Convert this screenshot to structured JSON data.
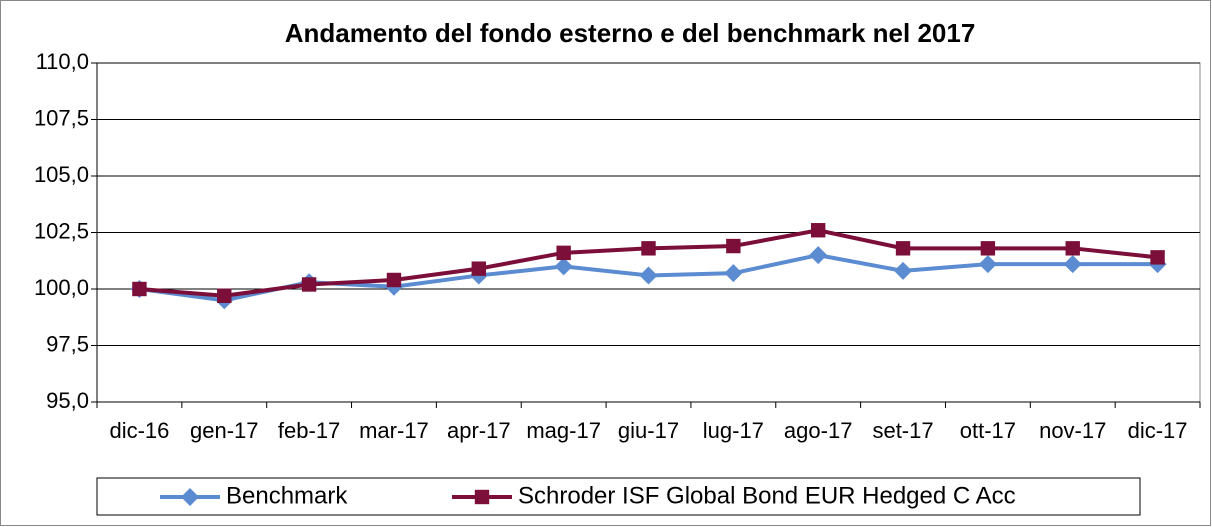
{
  "chart_data": {
    "type": "line",
    "title": "Andamento del fondo esterno e del benchmark nel 2017",
    "categories": [
      "dic-16",
      "gen-17",
      "feb-17",
      "mar-17",
      "apr-17",
      "mag-17",
      "giu-17",
      "lug-17",
      "ago-17",
      "set-17",
      "ott-17",
      "nov-17",
      "dic-17"
    ],
    "series": [
      {
        "name": "Benchmark",
        "color": "#5b8bd0",
        "marker": "diamond",
        "values": [
          100.0,
          99.5,
          100.3,
          100.1,
          100.6,
          101.0,
          100.6,
          100.7,
          101.5,
          100.8,
          101.1,
          101.1,
          101.1
        ]
      },
      {
        "name": "Schroder ISF Global Bond EUR Hedged C Acc",
        "color": "#7b0f3a",
        "marker": "square",
        "values": [
          100.0,
          99.7,
          100.2,
          100.4,
          100.9,
          101.6,
          101.8,
          101.9,
          102.6,
          101.8,
          101.8,
          101.8,
          101.4
        ]
      }
    ],
    "ylim": [
      95,
      110
    ],
    "yticks": [
      {
        "value": 95,
        "label": "95,0"
      },
      {
        "value": 97.5,
        "label": "97,5"
      },
      {
        "value": 100,
        "label": "100,0"
      },
      {
        "value": 102.5,
        "label": "102,5"
      },
      {
        "value": 105,
        "label": "105,0"
      },
      {
        "value": 107.5,
        "label": "107,5"
      },
      {
        "value": 110,
        "label": "110,0"
      }
    ],
    "grid": true,
    "legend": "bottom"
  }
}
